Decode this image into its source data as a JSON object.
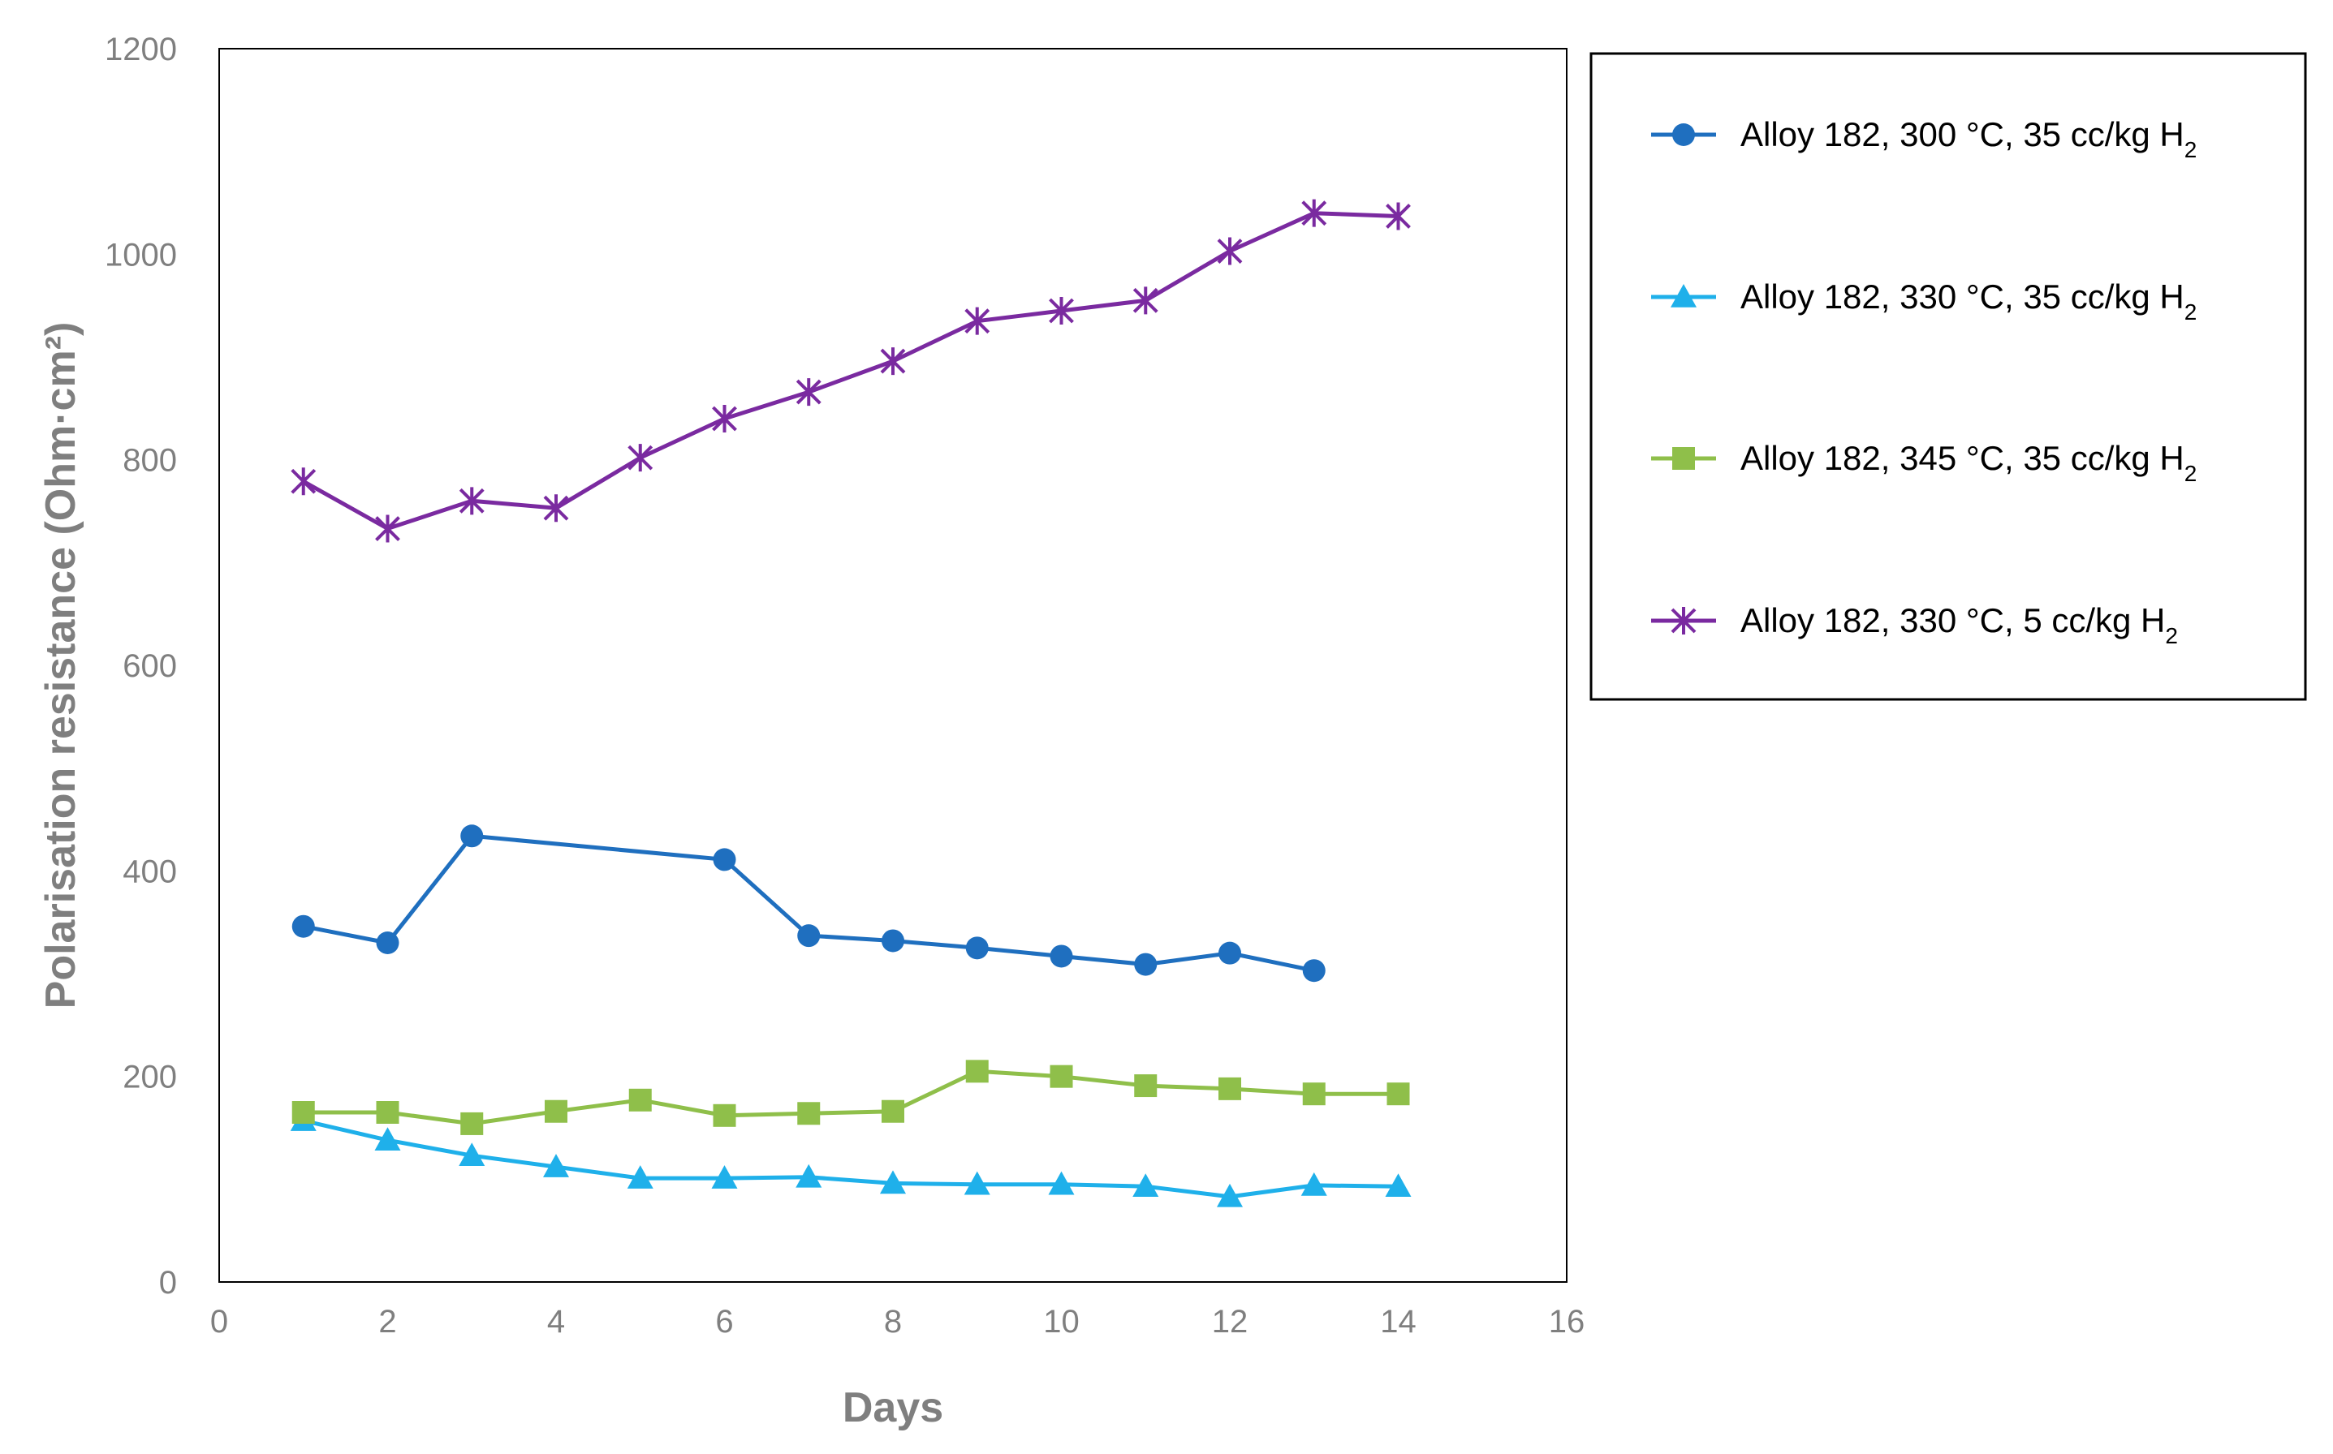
{
  "chart_data": {
    "type": "line",
    "xlabel": "Days",
    "ylabel": "Polarisation resistance (Ohm·cm²)",
    "xlim": [
      0,
      16
    ],
    "ylim": [
      0,
      1200
    ],
    "x_ticks": [
      "0",
      "2",
      "4",
      "6",
      "8",
      "10",
      "12",
      "14",
      "16"
    ],
    "y_ticks": [
      "0",
      "200",
      "400",
      "600",
      "800",
      "1000",
      "1200"
    ],
    "grid": false,
    "legend_position": "right",
    "series": [
      {
        "name": "Alloy 182, 300 °C, 35 cc/kg H",
        "name_subscript": "2",
        "color": "#1f6fbf",
        "marker": "circle",
        "x": [
          1,
          2,
          3,
          6,
          7,
          8,
          9,
          10,
          11,
          12,
          13
        ],
        "y": [
          346,
          330,
          434,
          411,
          337,
          332,
          325,
          317,
          309,
          320,
          303
        ]
      },
      {
        "name": "Alloy 182, 330 °C, 35 cc/kg H",
        "name_subscript": "2",
        "color": "#1fb0ea",
        "marker": "triangle",
        "x": [
          1,
          2,
          3,
          4,
          5,
          6,
          7,
          8,
          9,
          10,
          11,
          12,
          13,
          14
        ],
        "y": [
          157,
          138,
          123,
          112,
          101,
          101,
          102,
          96,
          95,
          95,
          93,
          83,
          94,
          93
        ]
      },
      {
        "name": "Alloy 182, 345 °C, 35 cc/kg H",
        "name_subscript": "2",
        "color": "#8fbf4a",
        "marker": "square",
        "x": [
          1,
          2,
          3,
          4,
          5,
          6,
          7,
          8,
          9,
          10,
          11,
          12,
          13,
          14
        ],
        "y": [
          165,
          165,
          154,
          166,
          177,
          162,
          164,
          166,
          205,
          200,
          191,
          188,
          183,
          183
        ]
      },
      {
        "name": "Alloy 182, 330 °C, 5 cc/kg H",
        "name_subscript": "2",
        "color": "#7a2aa0",
        "marker": "star",
        "x": [
          1,
          2,
          3,
          4,
          5,
          6,
          7,
          8,
          9,
          10,
          11,
          12,
          13,
          14
        ],
        "y": [
          779,
          733,
          760,
          753,
          802,
          840,
          866,
          896,
          935,
          945,
          955,
          1003,
          1040,
          1037
        ]
      }
    ]
  }
}
